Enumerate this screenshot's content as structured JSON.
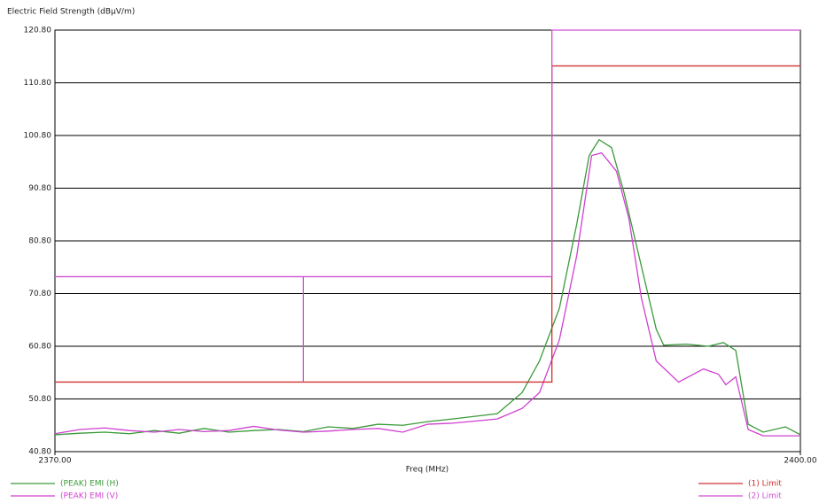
{
  "chart_data": {
    "type": "line",
    "y_label": "Electric Field Strength (dBµV/m)",
    "x_label": "Freq (MHz)",
    "xlim": [
      2370,
      2400
    ],
    "xticks": [
      {
        "value": 2370,
        "label": "2370.00"
      },
      {
        "value": 2400,
        "label": "2400.00"
      }
    ],
    "ylim": [
      40.8,
      120.8
    ],
    "yticks": [
      {
        "value": 40.8,
        "label": "40.80"
      },
      {
        "value": 50.8,
        "label": "50.80"
      },
      {
        "value": 60.8,
        "label": "60.80"
      },
      {
        "value": 70.8,
        "label": "70.80"
      },
      {
        "value": 80.8,
        "label": "80.80"
      },
      {
        "value": 90.8,
        "label": "90.80"
      },
      {
        "value": 100.8,
        "label": "100.80"
      },
      {
        "value": 110.8,
        "label": "110.80"
      },
      {
        "value": 120.8,
        "label": "120.80"
      }
    ],
    "grid": true,
    "series": [
      {
        "name": "(PEAK) EMI (H)",
        "color": "#3a9a3a",
        "x": [
          2370,
          2371,
          2372,
          2373,
          2374,
          2375,
          2376,
          2377,
          2378,
          2379,
          2380,
          2381,
          2382,
          2383,
          2384,
          2385,
          2386,
          2387.8,
          2388.8,
          2389.5,
          2390.3,
          2391,
          2391.5,
          2391.9,
          2392.4,
          2392.9,
          2393.5,
          2394.2,
          2394.5,
          2395.4,
          2396.3,
          2396.9,
          2397.4,
          2397.9,
          2398.5,
          2399.4,
          2400
        ],
        "values": [
          44,
          44.3,
          44.5,
          44.2,
          44.8,
          44.3,
          45.2,
          44.5,
          44.8,
          45,
          44.6,
          45.5,
          45.2,
          46,
          45.8,
          46.5,
          47,
          48,
          52,
          58,
          68,
          84,
          97,
          100,
          98.5,
          90,
          78,
          64,
          61,
          61.2,
          60.8,
          61.5,
          60,
          46,
          44.5,
          45.5,
          44
        ]
      },
      {
        "name": "(PEAK) EMI (V)",
        "color": "#d040d0",
        "x": [
          2370,
          2371,
          2372,
          2373,
          2374,
          2375,
          2376,
          2377,
          2378,
          2379,
          2380,
          2381,
          2382,
          2383,
          2384,
          2385,
          2386,
          2387.8,
          2388.8,
          2389.5,
          2390.3,
          2391,
          2391.6,
          2392,
          2392.6,
          2393.1,
          2393.6,
          2394.2,
          2395.1,
          2396.1,
          2396.7,
          2397,
          2397.4,
          2397.9,
          2398.5,
          2400
        ],
        "values": [
          44.2,
          45,
          45.3,
          44.8,
          44.5,
          45,
          44.6,
          44.8,
          45.6,
          44.9,
          44.5,
          44.7,
          45,
          45.2,
          44.5,
          46,
          46.2,
          47,
          49,
          52,
          62,
          78,
          97,
          97.5,
          94,
          85,
          70,
          58,
          54,
          56.5,
          55.5,
          53.5,
          55,
          45,
          43.8,
          43.8
        ]
      },
      {
        "name": "(1) Limit",
        "color": "#d03030",
        "x": [
          2370,
          2390,
          2390,
          2400
        ],
        "values": [
          54,
          54,
          114,
          114
        ]
      },
      {
        "name": "(2) Limit",
        "color": "#d050d0",
        "x": [
          2370,
          2380,
          2380,
          2380,
          2390,
          2390,
          2400
        ],
        "values": [
          74,
          74,
          54,
          74,
          74,
          120.8,
          120.8
        ]
      }
    ]
  }
}
